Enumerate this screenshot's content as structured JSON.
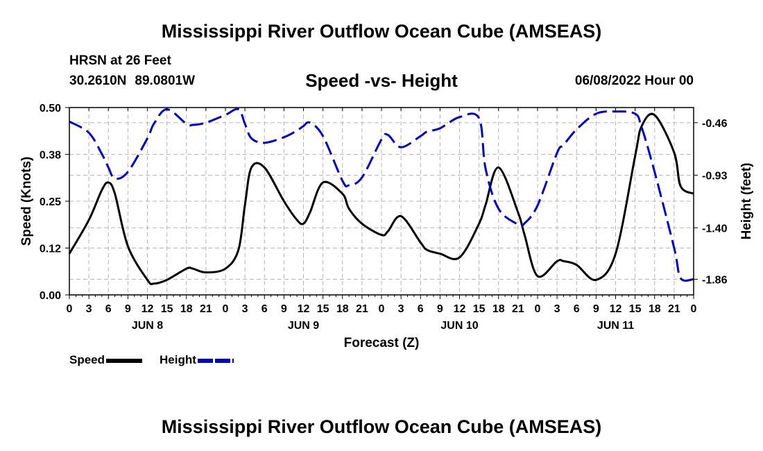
{
  "header": {
    "title": "Mississippi River Outflow Ocean Cube (AMSEAS)",
    "station": "HRSN at 26 Feet",
    "lat": "30.2610N",
    "lon": "89.0801W",
    "subtitle": "Speed -vs- Height",
    "datetime": "06/08/2022 Hour 00"
  },
  "footer": {
    "title": "Mississippi River Outflow Ocean Cube (AMSEAS)"
  },
  "legend": {
    "speed_label": "Speed",
    "height_label": "Height"
  },
  "colors": {
    "speed": "#000000",
    "height": "#0000cc",
    "grid": "#b4b4b4"
  },
  "chart_data": {
    "type": "line",
    "xlabel": "Forecast (Z)",
    "ylabel_left": "Speed (Knots)",
    "ylabel_right": "Height (feet)",
    "x_range_hours": [
      0,
      96
    ],
    "x_tick_labels": [
      "0",
      "3",
      "6",
      "9",
      "12",
      "15",
      "18",
      "21",
      "0",
      "3",
      "6",
      "9",
      "12",
      "15",
      "18",
      "21",
      "0",
      "3",
      "6",
      "9",
      "12",
      "15",
      "18",
      "21",
      "0",
      "3",
      "6",
      "9",
      "12",
      "15",
      "18",
      "21",
      "0"
    ],
    "date_labels": [
      {
        "label": "JUN 8",
        "hour": 12
      },
      {
        "label": "JUN 9",
        "hour": 36
      },
      {
        "label": "JUN 10",
        "hour": 60
      },
      {
        "label": "JUN 11",
        "hour": 84
      }
    ],
    "y_left": {
      "min": 0,
      "max": 0.5,
      "ticks": [
        0,
        0.125,
        0.25,
        0.375,
        0.5
      ],
      "tick_labels": [
        "0.00",
        "0.12",
        "0.25",
        "0.38",
        "0.50"
      ]
    },
    "y_right": {
      "min": -2.0,
      "max": -0.3246,
      "ticks": [
        -1.86,
        -1.4,
        -0.93,
        -0.46
      ],
      "tick_labels": [
        "-1.86",
        "-1.40",
        "-0.93",
        "-0.46"
      ]
    },
    "grid": true,
    "series": [
      {
        "name": "Speed",
        "axis": "left",
        "style": "solid",
        "x": [
          0,
          3,
          5,
          6,
          7,
          9,
          12,
          13,
          15,
          18,
          19,
          21,
          24,
          26,
          27,
          28,
          30,
          33,
          35,
          36,
          37,
          39,
          42,
          43,
          45,
          48,
          49,
          51,
          54,
          55,
          57,
          60,
          63,
          64,
          66,
          69,
          70,
          72,
          75,
          76,
          78,
          81,
          84,
          87,
          88,
          90,
          93,
          94,
          96
        ],
        "y": [
          0.11,
          0.2,
          0.28,
          0.3,
          0.27,
          0.13,
          0.04,
          0.03,
          0.04,
          0.07,
          0.07,
          0.06,
          0.07,
          0.12,
          0.24,
          0.34,
          0.34,
          0.25,
          0.2,
          0.19,
          0.22,
          0.3,
          0.27,
          0.23,
          0.19,
          0.16,
          0.17,
          0.21,
          0.14,
          0.12,
          0.11,
          0.1,
          0.19,
          0.24,
          0.34,
          0.22,
          0.16,
          0.05,
          0.09,
          0.09,
          0.08,
          0.04,
          0.11,
          0.37,
          0.45,
          0.48,
          0.38,
          0.29,
          0.27
        ]
      },
      {
        "name": "Height",
        "axis": "right",
        "style": "dashed",
        "x": [
          0,
          3,
          5,
          6,
          7,
          9,
          12,
          13,
          15,
          18,
          19,
          21,
          24,
          26,
          27,
          28,
          30,
          33,
          35,
          36,
          37,
          39,
          42,
          43,
          45,
          48,
          49,
          51,
          54,
          55,
          57,
          60,
          63,
          64,
          66,
          69,
          70,
          72,
          75,
          76,
          78,
          81,
          84,
          87,
          88,
          90,
          93,
          94,
          96
        ],
        "y": [
          -0.45,
          -0.55,
          -0.74,
          -0.86,
          -0.96,
          -0.9,
          -0.6,
          -0.47,
          -0.34,
          -0.47,
          -0.48,
          -0.46,
          -0.39,
          -0.34,
          -0.47,
          -0.6,
          -0.64,
          -0.59,
          -0.53,
          -0.49,
          -0.46,
          -0.58,
          -0.98,
          -1.02,
          -0.95,
          -0.61,
          -0.57,
          -0.68,
          -0.58,
          -0.54,
          -0.51,
          -0.41,
          -0.42,
          -0.87,
          -1.23,
          -1.37,
          -1.36,
          -1.2,
          -0.73,
          -0.66,
          -0.52,
          -0.38,
          -0.36,
          -0.38,
          -0.5,
          -0.9,
          -1.58,
          -1.85,
          -1.86
        ]
      }
    ]
  }
}
